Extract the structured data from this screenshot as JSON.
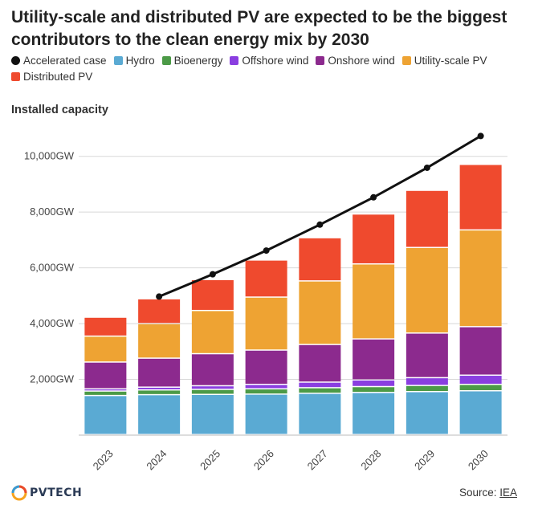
{
  "title": "Utility-scale and distributed PV are expected to be the biggest contributors to the clean energy mix by 2030",
  "subtitle": "Installed capacity",
  "source": {
    "label": "Source:",
    "link": "IEA"
  },
  "logo": {
    "text": "PVTECH"
  },
  "colors": {
    "hydro": "#5aaad3",
    "bioenergy": "#4c9a47",
    "offshore": "#8a3ee0",
    "onshore": "#8c2a8e",
    "utility": "#eea333",
    "distributed": "#ef4a2e",
    "accelerated": "#111111"
  },
  "chart_data": {
    "type": "bar",
    "stacked": true,
    "categories": [
      "2023",
      "2024",
      "2025",
      "2026",
      "2027",
      "2028",
      "2029",
      "2030"
    ],
    "ylim": [
      0,
      11000
    ],
    "yticks": [
      2000,
      4000,
      6000,
      8000,
      10000
    ],
    "ytick_labels": [
      "2,000GW",
      "4,000GW",
      "6,000GW",
      "8,000GW",
      "10,000GW"
    ],
    "xlabel": "",
    "ylabel": "",
    "legend_position": "top",
    "series": [
      {
        "name": "Hydro",
        "key": "hydro",
        "values": [
          1400,
          1430,
          1440,
          1450,
          1480,
          1510,
          1540,
          1570
        ]
      },
      {
        "name": "Bioenergy",
        "key": "bioenergy",
        "values": [
          160,
          170,
          180,
          190,
          200,
          210,
          220,
          230
        ]
      },
      {
        "name": "Offshore wind",
        "key": "offshore",
        "values": [
          80,
          100,
          130,
          160,
          200,
          240,
          280,
          330
        ]
      },
      {
        "name": "Onshore wind",
        "key": "onshore",
        "values": [
          960,
          1040,
          1150,
          1230,
          1350,
          1470,
          1600,
          1740
        ]
      },
      {
        "name": "Utility-scale PV",
        "key": "utility",
        "values": [
          930,
          1240,
          1550,
          1900,
          2280,
          2690,
          3070,
          3470
        ]
      },
      {
        "name": "Distributed PV",
        "key": "distributed",
        "values": [
          680,
          890,
          1110,
          1330,
          1550,
          1790,
          2050,
          2350
        ]
      }
    ],
    "line_series": {
      "name": "Accelerated case",
      "key": "accelerated",
      "x": [
        "2024",
        "2025",
        "2026",
        "2027",
        "2028",
        "2029",
        "2030"
      ],
      "values": [
        4970,
        5770,
        6620,
        7550,
        8530,
        9590,
        10730
      ]
    }
  }
}
